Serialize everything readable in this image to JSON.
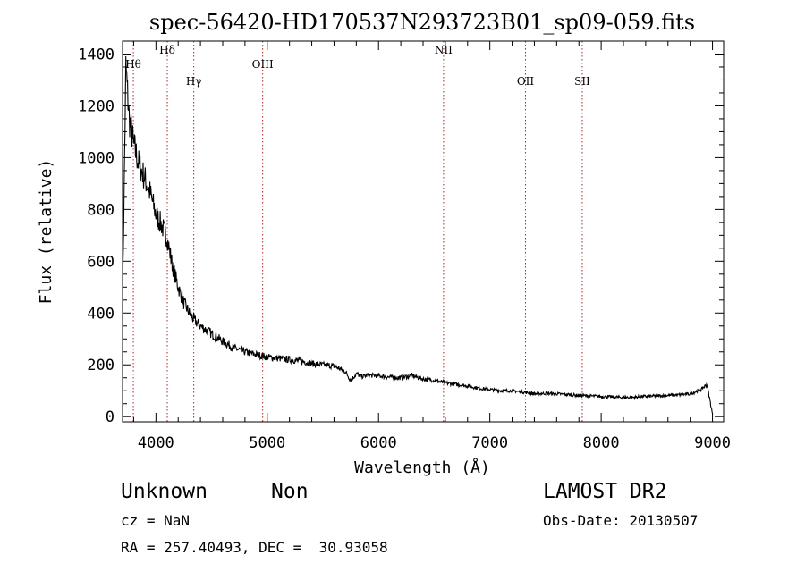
{
  "chart_data": {
    "type": "line",
    "title": "spec-56420-HD170537N293723B01_sp09-059.fits",
    "xlabel": "Wavelength (Å)",
    "ylabel": "Flux (relative)",
    "xlim": [
      3700,
      9100
    ],
    "ylim": [
      -20,
      1450
    ],
    "x_ticks": [
      4000,
      5000,
      6000,
      7000,
      8000,
      9000
    ],
    "y_ticks": [
      0,
      200,
      400,
      600,
      800,
      1000,
      1200,
      1400
    ],
    "grid": false,
    "line_color": "#000000",
    "marker_color": "#b22222",
    "series": [
      {
        "x": [
          3700,
          3730,
          3760,
          3800,
          3850,
          3900,
          3950,
          4000,
          4050,
          4100,
          4150,
          4200,
          4250,
          4300,
          4350,
          4400,
          4500,
          4600,
          4700,
          4800,
          4900,
          5000,
          5100,
          5200,
          5300,
          5400,
          5500,
          5600,
          5700,
          5750,
          5800,
          5850,
          5900,
          6000,
          6100,
          6200,
          6300,
          6400,
          6500,
          6600,
          6700,
          6800,
          6900,
          7000,
          7100,
          7200,
          7300,
          7400,
          7500,
          7600,
          7700,
          7800,
          7900,
          8000,
          8100,
          8200,
          8300,
          8400,
          8500,
          8600,
          8700,
          8800,
          8900,
          8950,
          9000
        ],
        "y": [
          450,
          1350,
          1150,
          1050,
          970,
          920,
          860,
          780,
          740,
          690,
          580,
          500,
          440,
          400,
          370,
          350,
          320,
          290,
          265,
          250,
          240,
          230,
          225,
          220,
          215,
          205,
          200,
          195,
          175,
          140,
          165,
          155,
          160,
          158,
          152,
          150,
          158,
          145,
          140,
          130,
          125,
          118,
          110,
          105,
          100,
          100,
          95,
          88,
          90,
          88,
          85,
          82,
          80,
          78,
          76,
          74,
          75,
          78,
          80,
          82,
          84,
          88,
          105,
          125,
          10
        ]
      }
    ],
    "line_markers": [
      {
        "label": "Hθ",
        "x": 3797,
        "row": 0
      },
      {
        "label": "Hδ",
        "x": 4102,
        "row": 1
      },
      {
        "label": "Hγ",
        "x": 4340,
        "row": 2
      },
      {
        "label": "OIII",
        "x": 4959,
        "row": 3
      },
      {
        "label": "NII",
        "x": 6584,
        "row": 1
      },
      {
        "label": "OII",
        "x": 7320,
        "row": 2
      },
      {
        "label": "SII",
        "x": 7830,
        "row": 2
      }
    ]
  },
  "info": {
    "class": "Unknown",
    "subclass": "Non",
    "survey": "LAMOST DR2",
    "cz": "cz = NaN",
    "obs_date": "Obs-Date: 20130507",
    "coords": "RA = 257.40493, DEC =  30.93058"
  }
}
